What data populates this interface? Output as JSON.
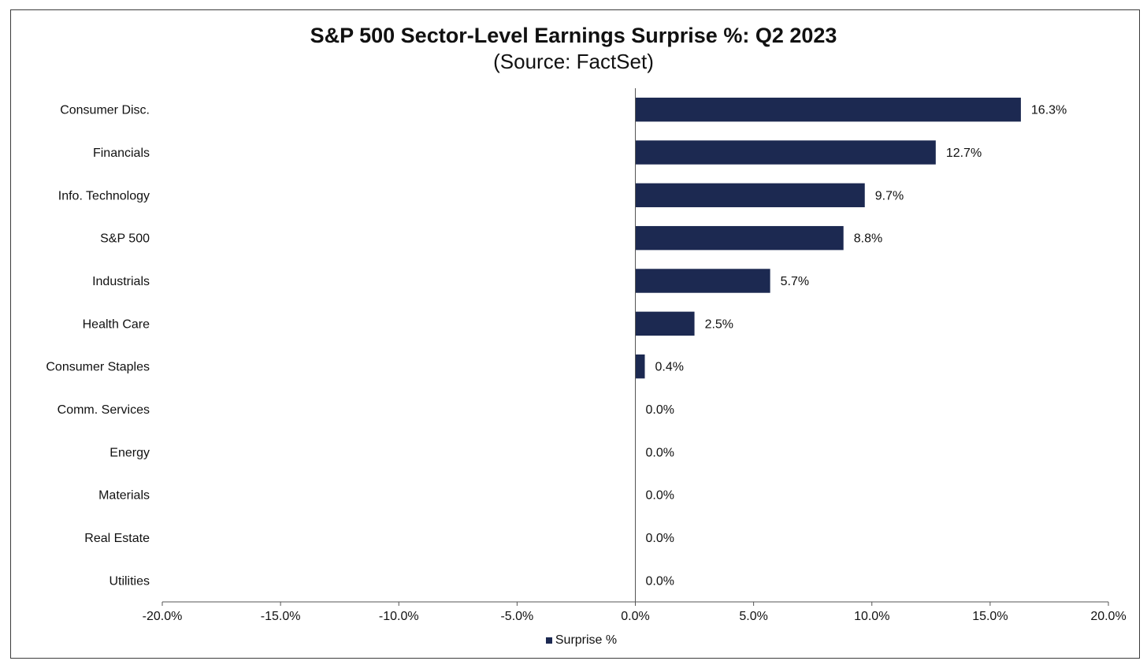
{
  "chart_data": {
    "type": "bar",
    "orientation": "horizontal",
    "title": "S&P 500 Sector-Level Earnings Surprise %: Q2 2023",
    "subtitle": "(Source: FactSet)",
    "categories": [
      "Consumer Disc.",
      "Financials",
      "Info. Technology",
      "S&P 500",
      "Industrials",
      "Health Care",
      "Consumer Staples",
      "Comm. Services",
      "Energy",
      "Materials",
      "Real Estate",
      "Utilities"
    ],
    "series": [
      {
        "name": "Surprise %",
        "values": [
          16.3,
          12.7,
          9.7,
          8.8,
          5.7,
          2.5,
          0.4,
          0.0,
          0.0,
          0.0,
          0.0,
          0.0
        ],
        "data_labels": [
          "16.3%",
          "12.7%",
          "9.7%",
          "8.8%",
          "5.7%",
          "2.5%",
          "0.4%",
          "0.0%",
          "0.0%",
          "0.0%",
          "0.0%",
          "0.0%"
        ],
        "color": "#1c2951"
      }
    ],
    "xlim": [
      -20,
      20
    ],
    "xticks": [
      -20,
      -15,
      -10,
      -5,
      0,
      5,
      10,
      15,
      20
    ],
    "xtick_labels": [
      "-20.0%",
      "-15.0%",
      "-10.0%",
      "-5.0%",
      "0.0%",
      "5.0%",
      "10.0%",
      "15.0%",
      "20.0%"
    ],
    "xlabel": "",
    "ylabel": "",
    "grid": false,
    "legend": "bottom-center"
  }
}
